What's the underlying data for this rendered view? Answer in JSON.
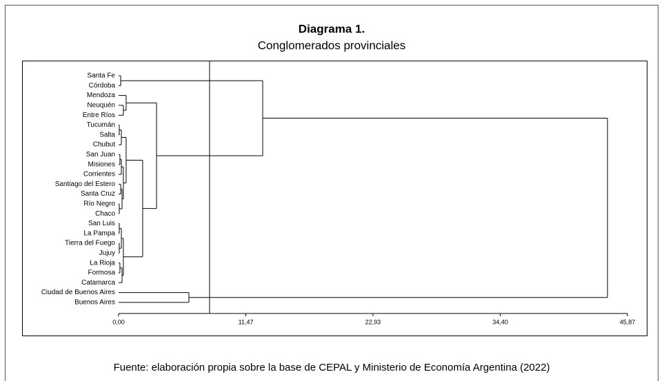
{
  "chart_data": {
    "type": "dendrogram",
    "title": "Diagrama 1.",
    "subtitle": "Conglomerados provinciales",
    "source": "Fuente: elaboración propia sobre la base de CEPAL y Ministerio de Economía Argentina (2022)",
    "categories": [
      "Santa Fe",
      "Córdoba",
      "Mendoza",
      "Neuquén",
      "Entre Ríos",
      "Tucumán",
      "Salta",
      "Chubut",
      "San Juan",
      "Misiones",
      "Corrientes",
      "Santiago del Estero",
      "Santa Cruz",
      "Río Negro",
      "Chaco",
      "San Luis",
      "La Pampa",
      "Tierra del Fuego",
      "Jujuy",
      "La Rioja",
      "Formosa",
      "Catamarca",
      "Ciudad de Buenos Aires",
      "Buenos Aires"
    ],
    "merges": [
      {
        "join": [
          0,
          1
        ],
        "height": 0.19
      },
      {
        "join": [
          3,
          4
        ],
        "height": 0.43
      },
      {
        "join": [
          2,
          25
        ],
        "height": 0.68
      },
      {
        "join": [
          5,
          6
        ],
        "height": 0.06
      },
      {
        "join": [
          27,
          7
        ],
        "height": 0.25
      },
      {
        "join": [
          8,
          9
        ],
        "height": 0.12
      },
      {
        "join": [
          29,
          10
        ],
        "height": 0.25
      },
      {
        "join": [
          11,
          12
        ],
        "height": 0.19
      },
      {
        "join": [
          13,
          14
        ],
        "height": 0.06
      },
      {
        "join": [
          31,
          32
        ],
        "height": 0.31
      },
      {
        "join": [
          30,
          33
        ],
        "height": 0.43
      },
      {
        "join": [
          28,
          34
        ],
        "height": 0.68
      },
      {
        "join": [
          15,
          16
        ],
        "height": 0.06
      },
      {
        "join": [
          17,
          18
        ],
        "height": 0.06
      },
      {
        "join": [
          36,
          37
        ],
        "height": 0.25
      },
      {
        "join": [
          19,
          20
        ],
        "height": 0.12
      },
      {
        "join": [
          39,
          21
        ],
        "height": 0.31
      },
      {
        "join": [
          38,
          40
        ],
        "height": 0.43
      },
      {
        "join": [
          35,
          41
        ],
        "height": 2.17
      },
      {
        "join": [
          26,
          42
        ],
        "height": 3.42
      },
      {
        "join": [
          24,
          43
        ],
        "height": 12.99
      },
      {
        "join": [
          22,
          23
        ],
        "height": 6.34
      },
      {
        "join": [
          44,
          45
        ],
        "height": 44.07
      }
    ],
    "cut": 8.2,
    "xlim": [
      0,
      45.87
    ],
    "xticks": [
      {
        "value": 0,
        "label": "0,00"
      },
      {
        "value": 11.47,
        "label": "11,47"
      },
      {
        "value": 22.93,
        "label": "22,93"
      },
      {
        "value": 34.4,
        "label": "34,40"
      },
      {
        "value": 45.87,
        "label": "45,87"
      }
    ],
    "color": "#000000"
  }
}
